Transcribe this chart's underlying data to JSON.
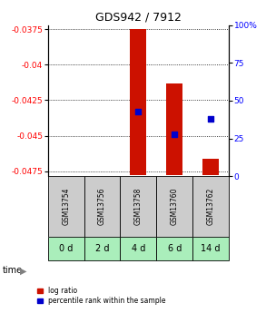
{
  "title": "GDS942 / 7912",
  "samples": [
    "GSM13754",
    "GSM13756",
    "GSM13758",
    "GSM13760",
    "GSM13762"
  ],
  "time_labels": [
    "0 d",
    "2 d",
    "4 d",
    "6 d",
    "14 d"
  ],
  "bar_tops": [
    null,
    null,
    -0.0375,
    -0.0413,
    null
  ],
  "bar_bottoms": [
    null,
    null,
    -0.0478,
    -0.0478,
    -0.047
  ],
  "bar_top_only": [
    null,
    null,
    null,
    null,
    -0.0466
  ],
  "percentile_ranks": [
    null,
    null,
    43,
    28,
    38
  ],
  "ylim": [
    -0.04785,
    -0.0372
  ],
  "yticks_left": [
    -0.0475,
    -0.045,
    -0.0425,
    -0.04,
    -0.0375
  ],
  "ytick_labels_left": [
    "-0.0475",
    "-0.045",
    "-0.0425",
    "-0.04",
    "-0.0375"
  ],
  "yticks_right": [
    0,
    25,
    50,
    75,
    100
  ],
  "ytick_labels_right": [
    "0",
    "25",
    "50",
    "75",
    "100%"
  ],
  "bar_color": "#cc1100",
  "dot_color": "#0000cc",
  "sample_bg_color": "#cccccc",
  "time_bg_color": "#aaeebb",
  "legend_bar_label": "log ratio",
  "legend_dot_label": "percentile rank within the sample",
  "time_label": "time",
  "n_samples": 5,
  "bar_width": 0.45
}
